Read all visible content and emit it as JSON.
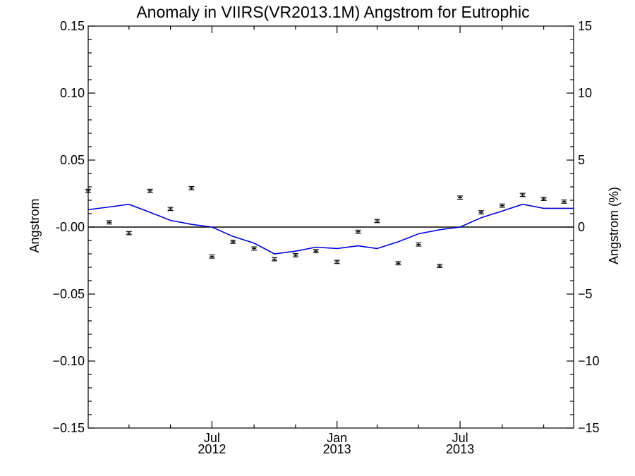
{
  "chart_data": {
    "type": "line",
    "title": "Anomaly in VIIRS(VR2013.1M) Angstrom for Eutrophic",
    "ylabel": "Angstrom",
    "ylabel_right": "Angstrom (%)",
    "xlabel": "",
    "ylim": [
      -0.15,
      0.15
    ],
    "ylim_right": [
      -15,
      15
    ],
    "y_ticks": [
      -0.15,
      -0.1,
      -0.05,
      0.0,
      0.05,
      0.1,
      0.15
    ],
    "y_tick_labels": [
      "−0.15",
      "−0.10",
      "−0.05",
      "-0.00",
      "0.05",
      "0.10",
      "0.15"
    ],
    "y_right_ticks": [
      -15,
      -10,
      -5,
      0,
      5,
      10,
      15
    ],
    "y_right_tick_labels": [
      "−15",
      "−10",
      "−5",
      "0",
      "5",
      "10",
      "15"
    ],
    "x_range": [
      "2012-01-01",
      "2013-12-15"
    ],
    "x_major_ticks": [
      {
        "date": "2012-07-01",
        "month": "Jul",
        "year": "2012"
      },
      {
        "date": "2013-01-01",
        "month": "Jan",
        "year": "2013"
      },
      {
        "date": "2013-07-01",
        "month": "Jul",
        "year": "2013"
      }
    ],
    "x_minor_ticks": [
      "2012-03-01",
      "2012-05-01",
      "2012-09-01",
      "2012-11-01",
      "2013-03-01",
      "2013-05-01",
      "2013-09-01",
      "2013-11-01"
    ],
    "line_color": "#0000dd",
    "marker_color": "#000000",
    "series": [
      {
        "type": "line",
        "x": [
          "2012-01-01",
          "2012-02-01",
          "2012-03-01",
          "2012-04-01",
          "2012-05-01",
          "2012-06-01",
          "2012-07-01",
          "2012-08-01",
          "2012-09-01",
          "2012-10-01",
          "2012-11-01",
          "2012-12-01",
          "2013-01-01",
          "2013-02-01",
          "2013-03-01",
          "2013-04-01",
          "2013-05-01",
          "2013-06-01",
          "2013-07-01",
          "2013-08-01",
          "2013-09-01",
          "2013-10-01",
          "2013-11-01",
          "2013-12-01",
          "2013-12-15"
        ],
        "values": [
          0.013,
          0.015,
          0.017,
          0.011,
          0.005,
          0.002,
          0.0,
          -0.007,
          -0.012,
          -0.02,
          -0.018,
          -0.015,
          -0.016,
          -0.014,
          -0.016,
          -0.011,
          -0.005,
          -0.002,
          0.0,
          0.007,
          0.012,
          0.017,
          0.014,
          0.014,
          0.014
        ]
      },
      {
        "type": "errorbar",
        "x": [
          "2012-01-01",
          "2012-02-01",
          "2012-03-01",
          "2012-04-01",
          "2012-05-01",
          "2012-06-01",
          "2012-07-01",
          "2012-08-01",
          "2012-09-01",
          "2012-10-01",
          "2012-11-01",
          "2012-12-01",
          "2013-01-01",
          "2013-02-01",
          "2013-03-01",
          "2013-04-01",
          "2013-05-01",
          "2013-06-01",
          "2013-07-01",
          "2013-08-01",
          "2013-09-01",
          "2013-10-01",
          "2013-11-01",
          "2013-12-01"
        ],
        "values": [
          0.027,
          0.0035,
          -0.0045,
          0.027,
          0.0135,
          0.029,
          -0.022,
          -0.011,
          -0.016,
          -0.024,
          -0.021,
          -0.018,
          -0.026,
          -0.0035,
          0.0045,
          -0.027,
          -0.013,
          -0.029,
          0.022,
          0.011,
          0.016,
          0.024,
          0.021,
          0.019
        ],
        "error": 0.0012
      }
    ]
  }
}
